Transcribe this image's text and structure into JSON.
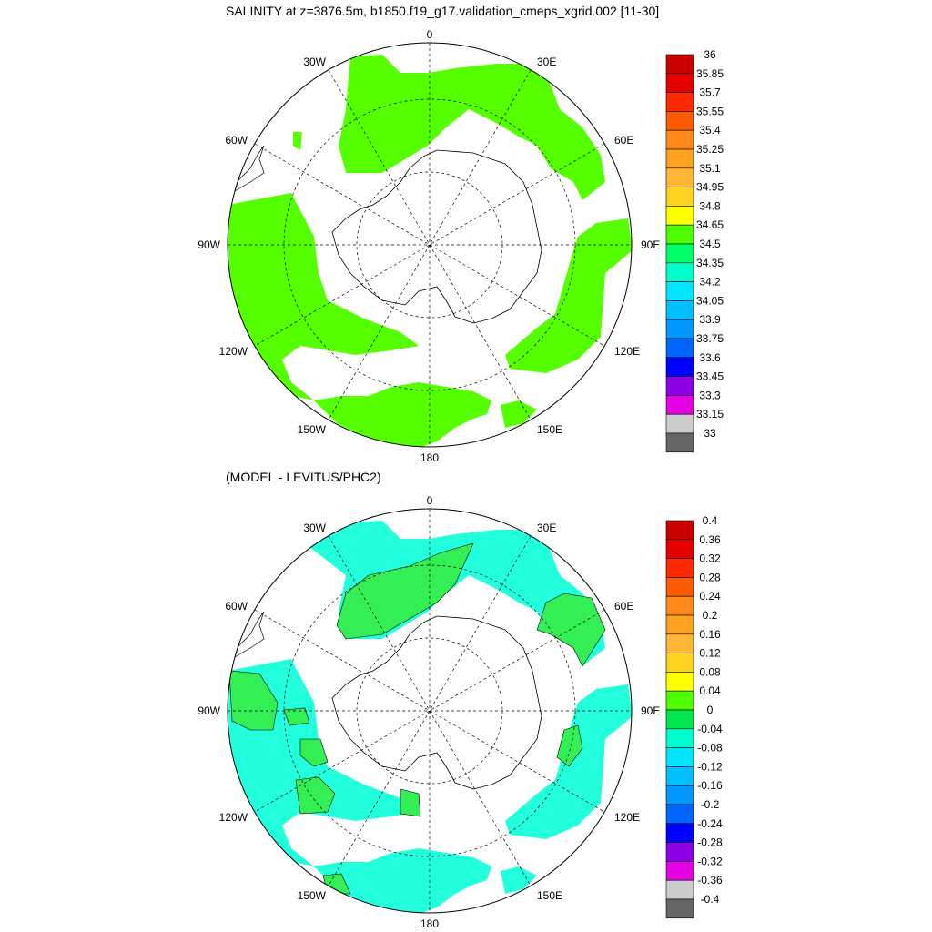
{
  "panels": [
    {
      "title": "SALINITY at z=3876.5m, b1850.f19_g17.validation_cmeps_xgrid.002 [11-30]",
      "colorbar": {
        "labels": [
          "36",
          "35.85",
          "35.7",
          "35.55",
          "35.4",
          "35.25",
          "35.1",
          "34.95",
          "34.8",
          "34.65",
          "34.5",
          "34.35",
          "34.2",
          "34.05",
          "33.9",
          "33.75",
          "33.6",
          "33.45",
          "33.3",
          "33.15",
          "33"
        ],
        "colors": [
          "#c80000",
          "#e60000",
          "#ff2a00",
          "#ff5a00",
          "#ff8a1a",
          "#ffa31f",
          "#ffb733",
          "#ffd21f",
          "#ffff00",
          "#4dff00",
          "#00ff66",
          "#00ffcc",
          "#00e6ff",
          "#00bfff",
          "#0099ff",
          "#0066ff",
          "#0000ff",
          "#8c00e6",
          "#e600e6",
          "#cccccc",
          "#666666"
        ]
      },
      "fill_color": "#55ff00",
      "contour_lines": false
    },
    {
      "title": "(MODEL - LEVITUS/PHC2)",
      "colorbar": {
        "labels": [
          "0.4",
          "0.36",
          "0.32",
          "0.28",
          "0.24",
          "0.2",
          "0.16",
          "0.12",
          "0.08",
          "0.04",
          "0",
          "-0.04",
          "-0.08",
          "-0.12",
          "-0.16",
          "-0.2",
          "-0.24",
          "-0.28",
          "-0.32",
          "-0.36",
          "-0.4"
        ],
        "colors": [
          "#c80000",
          "#e60000",
          "#ff2a00",
          "#ff5a00",
          "#ff8a1a",
          "#ffa31f",
          "#ffb733",
          "#ffd21f",
          "#ffff00",
          "#4dff00",
          "#00e64d",
          "#00ffd0",
          "#00e6ff",
          "#00bfff",
          "#0099ff",
          "#0066ff",
          "#0000ff",
          "#8c00e6",
          "#e600e6",
          "#cccccc",
          "#666666"
        ]
      },
      "fill_color_pos": "#33ee55",
      "fill_color_neg": "#22ffdd",
      "contour_lines": true
    }
  ],
  "map_labels": {
    "top": "0",
    "bottom": "180",
    "left": "90W",
    "right": "90E",
    "lon_30w": "30W",
    "lon_30e": "30E",
    "lon_60w": "60W",
    "lon_60e": "60E",
    "lon_120w": "120W",
    "lon_120e": "120E",
    "lon_150w": "150W",
    "lon_150e": "150E"
  }
}
